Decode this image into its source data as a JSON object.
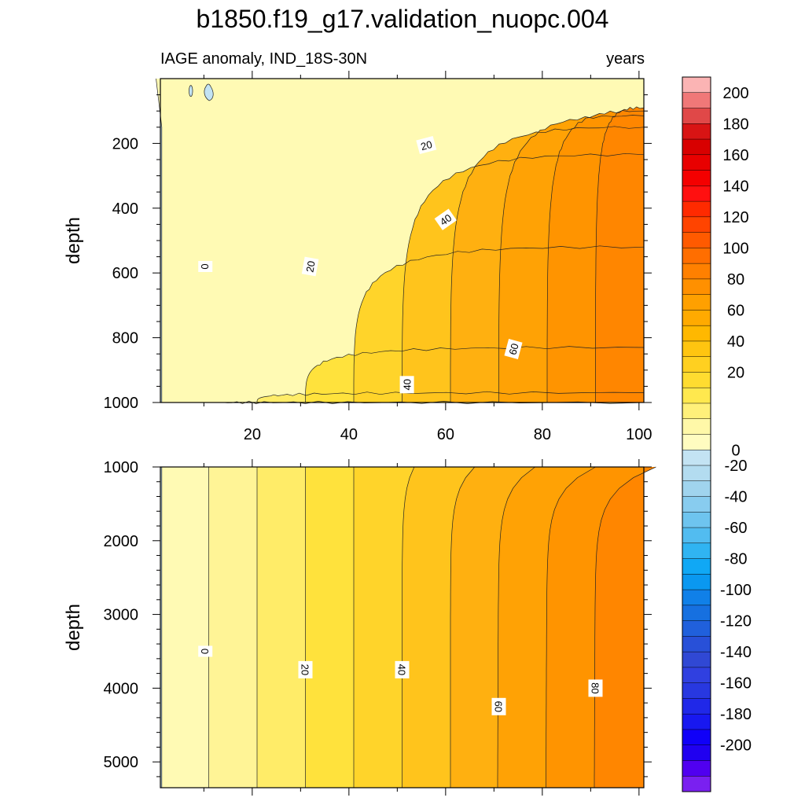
{
  "title": "b1850.f19_g17.validation_nuopc.004",
  "subtitle_left": "IAGE anomaly, IND_18S-30N",
  "subtitle_right": "years",
  "chart_data": [
    {
      "type": "contour",
      "panel": "upper",
      "ylabel": "depth",
      "yreversed": true,
      "xlim": [
        1,
        101
      ],
      "ylim": [
        0,
        1000
      ],
      "xticks": [
        20,
        40,
        60,
        80,
        100
      ],
      "xtick_labels": [
        "20",
        "40",
        "60",
        "80",
        "100"
      ],
      "yticks": [
        200,
        400,
        600,
        800,
        1000
      ],
      "ytick_labels": [
        "200",
        "400",
        "600",
        "800",
        "1000"
      ],
      "contour_levels": [
        0,
        10,
        20,
        30,
        40,
        50,
        60,
        70,
        80,
        90
      ],
      "surface_contour_depths": [
        null,
        1000,
        970,
        830,
        520,
        235,
        150,
        115,
        100,
        90
      ],
      "contour_labels": [
        {
          "text": "0",
          "x": 10.3,
          "y": 580
        },
        {
          "text": "20",
          "x": 32,
          "y": 580
        },
        {
          "text": "20",
          "x": 56,
          "y": 205
        },
        {
          "text": "40",
          "x": 60,
          "y": 435
        },
        {
          "text": "40",
          "x": 52,
          "y": 945
        },
        {
          "text": "60",
          "x": 74,
          "y": 835
        }
      ]
    },
    {
      "type": "contour",
      "panel": "lower",
      "ylabel": "depth",
      "yreversed": true,
      "xlim": [
        1,
        101
      ],
      "ylim": [
        1000,
        5350
      ],
      "xticks": [
        20,
        40,
        60,
        80,
        100
      ],
      "yticks": [
        1000,
        2000,
        3000,
        4000,
        5000
      ],
      "ytick_labels": [
        "1000",
        "2000",
        "3000",
        "4000",
        "5000"
      ],
      "contour_levels": [
        0,
        10,
        20,
        30,
        40,
        50,
        60,
        70,
        80,
        90
      ],
      "contour_labels": [
        {
          "text": "0",
          "x": 10.3,
          "y": 3500
        },
        {
          "text": "20",
          "x": 31,
          "y": 3750
        },
        {
          "text": "40",
          "x": 51,
          "y": 3750
        },
        {
          "text": "60",
          "x": 71,
          "y": 4250
        },
        {
          "text": "80",
          "x": 91,
          "y": 4000
        }
      ]
    }
  ],
  "colorbar": {
    "labels": [
      "200",
      "180",
      "160",
      "140",
      "120",
      "100",
      "80",
      "60",
      "40",
      "20",
      "0",
      "-20",
      "-40",
      "-60",
      "-80",
      "-100",
      "-120",
      "-140",
      "-160",
      "-180",
      "-200"
    ],
    "colors_top_to_bottom": [
      "#fbb4b4",
      "#f07878",
      "#e04848",
      "#d81414",
      "#d80000",
      "#e80000",
      "#f40000",
      "#ff1010",
      "#ff2a00",
      "#ff4400",
      "#ff5a00",
      "#ff6e00",
      "#ff8000",
      "#ff9000",
      "#ffa000",
      "#ffaa00",
      "#ffb800",
      "#ffc510",
      "#ffd020",
      "#ffdc30",
      "#ffe84e",
      "#fff07a",
      "#fff8a8",
      "#fffcc0",
      "#c3e3f3",
      "#b3dcf0",
      "#a0d4ee",
      "#88ccef",
      "#6ec4ef",
      "#52bcf0",
      "#30b4f2",
      "#10a8f5",
      "#0a98f0",
      "#1080e8",
      "#1670e0",
      "#2060dc",
      "#2850d8",
      "#3048d4",
      "#3040e0",
      "#2838e0",
      "#2028e8",
      "#1818f0",
      "#1000f8",
      "#2000f0",
      "#5000f0",
      "#7a20f0"
    ]
  }
}
